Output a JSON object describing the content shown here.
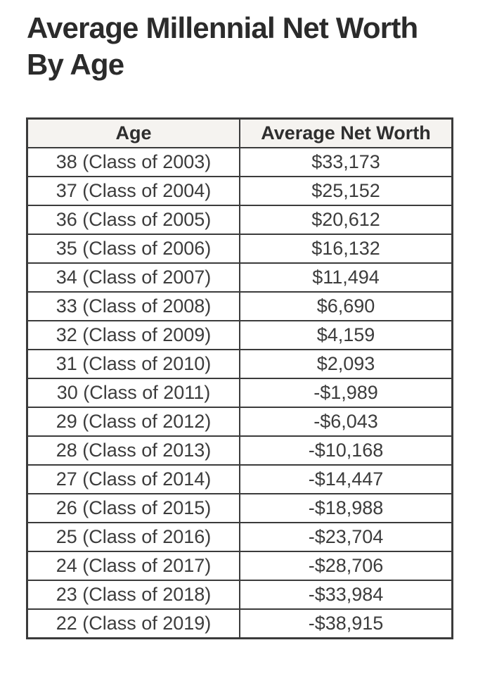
{
  "page": {
    "title": "Average Millennial Net Worth By Age"
  },
  "table": {
    "columns": [
      "Age",
      "Average Net Worth"
    ],
    "rows": [
      {
        "age": "38 (Class of 2003)",
        "net_worth": "$33,173"
      },
      {
        "age": "37 (Class of 2004)",
        "net_worth": "$25,152"
      },
      {
        "age": "36 (Class of 2005)",
        "net_worth": "$20,612"
      },
      {
        "age": "35 (Class of 2006)",
        "net_worth": "$16,132"
      },
      {
        "age": "34 (Class of 2007)",
        "net_worth": "$11,494"
      },
      {
        "age": "33 (Class of 2008)",
        "net_worth": "$6,690"
      },
      {
        "age": "32 (Class of 2009)",
        "net_worth": "$4,159"
      },
      {
        "age": "31 (Class of 2010)",
        "net_worth": "$2,093"
      },
      {
        "age": "30 (Class of 2011)",
        "net_worth": "-$1,989"
      },
      {
        "age": "29 (Class of 2012)",
        "net_worth": "-$6,043"
      },
      {
        "age": "28 (Class of 2013)",
        "net_worth": "-$10,168"
      },
      {
        "age": "27 (Class of 2014)",
        "net_worth": "-$14,447"
      },
      {
        "age": "26 (Class of 2015)",
        "net_worth": "-$18,988"
      },
      {
        "age": "25 (Class of 2016)",
        "net_worth": "-$23,704"
      },
      {
        "age": "24 (Class of 2017)",
        "net_worth": "-$28,706"
      },
      {
        "age": "23 (Class of 2018)",
        "net_worth": "-$33,984"
      },
      {
        "age": "22 (Class of 2019)",
        "net_worth": "-$38,915"
      }
    ]
  },
  "chart_data": {
    "type": "table",
    "title": "Average Millennial Net Worth By Age",
    "columns": [
      "Age",
      "Average Net Worth"
    ],
    "ages": [
      38,
      37,
      36,
      35,
      34,
      33,
      32,
      31,
      30,
      29,
      28,
      27,
      26,
      25,
      24,
      23,
      22
    ],
    "class_years": [
      2003,
      2004,
      2005,
      2006,
      2007,
      2008,
      2009,
      2010,
      2011,
      2012,
      2013,
      2014,
      2015,
      2016,
      2017,
      2018,
      2019
    ],
    "net_worth_values": [
      33173,
      25152,
      20612,
      16132,
      11494,
      6690,
      4159,
      2093,
      -1989,
      -6043,
      -10168,
      -14447,
      -18988,
      -23704,
      -28706,
      -33984,
      -38915
    ]
  },
  "colors": {
    "page_bg": "#ffffff",
    "title_text": "#2b2b2b",
    "header_bg": "#f5f3f0",
    "header_text": "#2e2e2e",
    "cell_bg": "#ffffff",
    "cell_text": "#3c3c3c",
    "border": "#3b3b3b"
  }
}
